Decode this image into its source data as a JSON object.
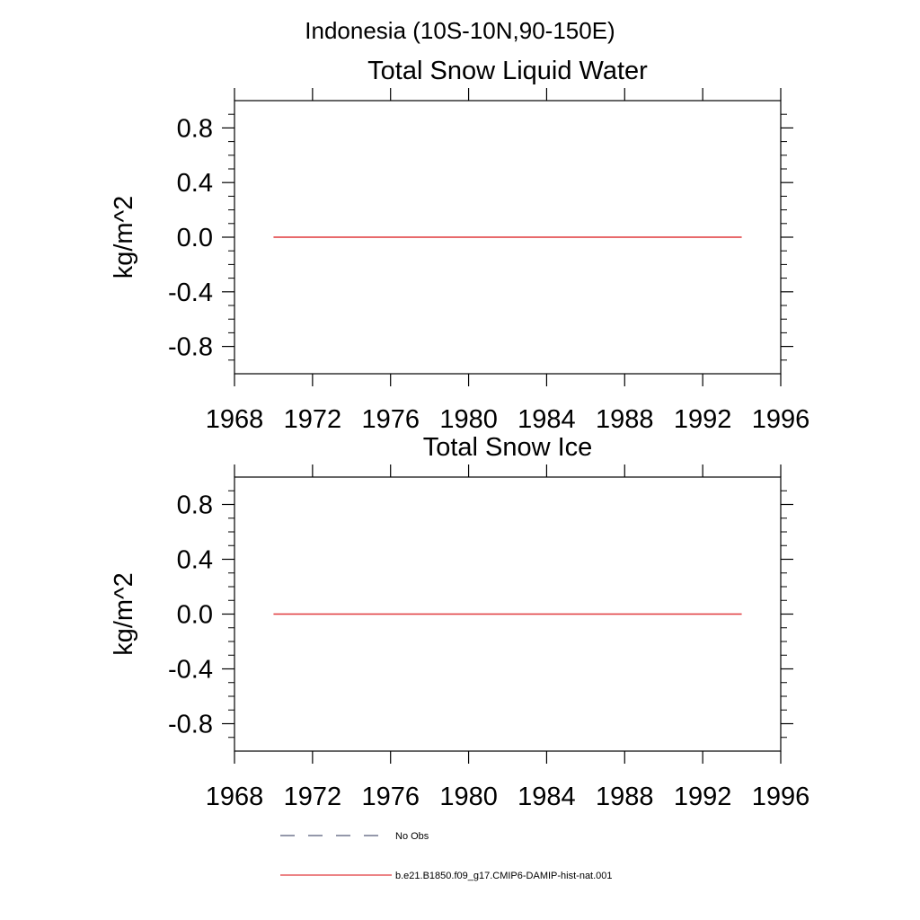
{
  "figure_title": "Indonesia (10S-10N,90-150E)",
  "legend": {
    "items": [
      {
        "label": "No Obs",
        "color": "#555a78",
        "style": "dashed"
      },
      {
        "label": "b.e21.B1850.f09_g17.CMIP6-DAMIP-hist-nat.001",
        "color": "#e0393c",
        "style": "solid"
      }
    ]
  },
  "chart_data": [
    {
      "type": "line",
      "title": "Total Snow Liquid Water",
      "ylabel": "kg/m^2",
      "xlim": [
        1968,
        1996
      ],
      "ylim": [
        -1.0,
        1.0
      ],
      "xticks": [
        1968,
        1972,
        1976,
        1980,
        1984,
        1988,
        1992,
        1996
      ],
      "xtick_labels": [
        "1968",
        "1972",
        "1976",
        "1980",
        "1984",
        "1988",
        "1992",
        "1996"
      ],
      "yticks": [
        0.8,
        0.4,
        0.0,
        -0.4,
        -0.8
      ],
      "ytick_labels": [
        "0.8",
        "0.4",
        "0.0",
        "-0.4",
        "-0.8"
      ],
      "grid": false,
      "series": [
        {
          "name": "b.e21.B1850.f09_g17.CMIP6-DAMIP-hist-nat.001",
          "color": "#e0393c",
          "x": [
            1970,
            1994
          ],
          "y": [
            0.0,
            0.0
          ]
        }
      ]
    },
    {
      "type": "line",
      "title": "Total Snow Ice",
      "ylabel": "kg/m^2",
      "xlim": [
        1968,
        1996
      ],
      "ylim": [
        -1.0,
        1.0
      ],
      "xticks": [
        1968,
        1972,
        1976,
        1980,
        1984,
        1988,
        1992,
        1996
      ],
      "xtick_labels": [
        "1968",
        "1972",
        "1976",
        "1980",
        "1984",
        "1988",
        "1992",
        "1996"
      ],
      "yticks": [
        0.8,
        0.4,
        0.0,
        -0.4,
        -0.8
      ],
      "ytick_labels": [
        "0.8",
        "0.4",
        "0.0",
        "-0.4",
        "-0.8"
      ],
      "grid": false,
      "series": [
        {
          "name": "b.e21.B1850.f09_g17.CMIP6-DAMIP-hist-nat.001",
          "color": "#e0393c",
          "x": [
            1970,
            1994
          ],
          "y": [
            0.0,
            0.0
          ]
        }
      ]
    }
  ]
}
